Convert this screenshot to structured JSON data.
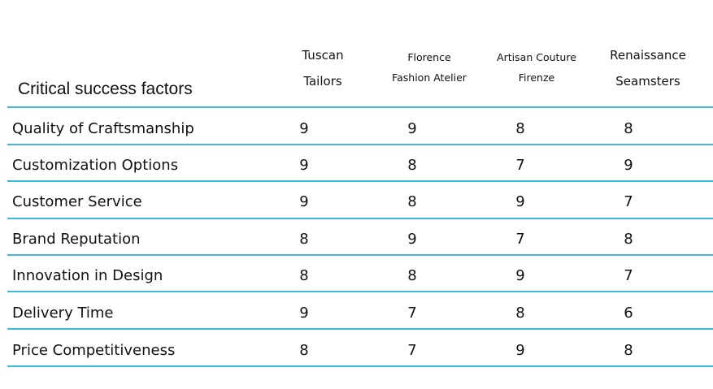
{
  "table": {
    "row_header_title": "Critical success factors",
    "columns": [
      {
        "line1": "Tuscan",
        "line2": "Tailors"
      },
      {
        "line1": "Florence",
        "line2": "Fashion Atelier"
      },
      {
        "line1": "Artisan Couture",
        "line2": "Firenze"
      },
      {
        "line1": "Renaissance",
        "line2": "Seamsters"
      }
    ],
    "rows": [
      {
        "factor": "Quality of Craftsmanship",
        "scores": [
          "9",
          "9",
          "8",
          "8"
        ]
      },
      {
        "factor": "Customization Options",
        "scores": [
          "9",
          "8",
          "7",
          "9"
        ]
      },
      {
        "factor": "Customer Service",
        "scores": [
          "9",
          "8",
          "9",
          "7"
        ]
      },
      {
        "factor": "Brand Reputation",
        "scores": [
          "8",
          "9",
          "7",
          "8"
        ]
      },
      {
        "factor": "Innovation in Design",
        "scores": [
          "8",
          "8",
          "9",
          "7"
        ]
      },
      {
        "factor": "Delivery Time",
        "scores": [
          "9",
          "7",
          "8",
          "6"
        ]
      },
      {
        "factor": "Price Competitiveness",
        "scores": [
          "8",
          "7",
          "9",
          "8"
        ]
      }
    ]
  },
  "colors": {
    "rule": "#3fb8dd",
    "text": "#111111",
    "background": "#ffffff"
  }
}
